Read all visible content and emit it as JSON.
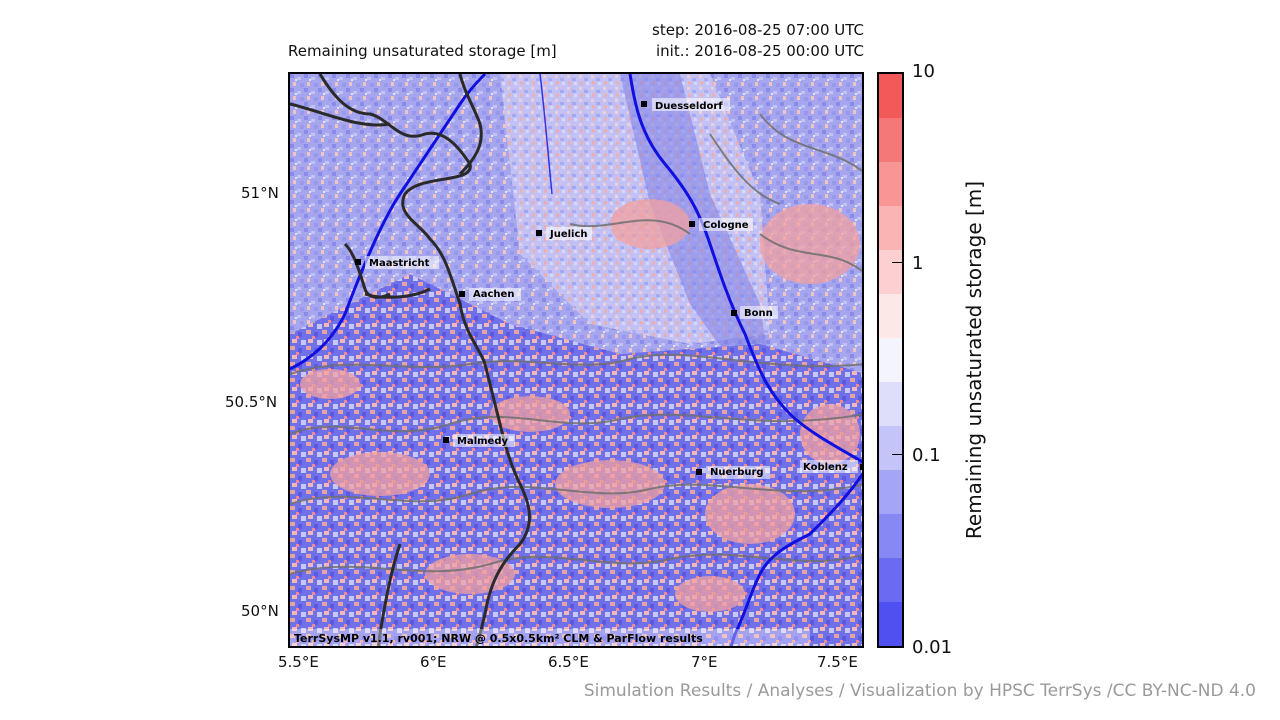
{
  "header": {
    "variable_title": "Remaining unsaturated storage [m]",
    "step_text": "step: 2016-08-25 07:00 UTC",
    "init_text": "init.: 2016-08-25 00:00 UTC"
  },
  "axes": {
    "lat_ticks": [
      "51°N",
      "50.5°N",
      "50°N"
    ],
    "lon_ticks": [
      "5.5°E",
      "6°E",
      "6.5°E",
      "7°E",
      "7.5°E"
    ]
  },
  "map": {
    "cities": [
      {
        "name": "Duesseldorf"
      },
      {
        "name": "Cologne"
      },
      {
        "name": "Juelich"
      },
      {
        "name": "Maastricht"
      },
      {
        "name": "Aachen"
      },
      {
        "name": "Bonn"
      },
      {
        "name": "Malmedy"
      },
      {
        "name": "Nuerburg"
      },
      {
        "name": "Koblenz"
      }
    ],
    "credit": "TerrSysMP v1.1, rv001; NRW @ 0.5x0.5km² CLM & ParFlow results",
    "colors": {
      "river": "#1010e0",
      "border": "#2a2a2a",
      "contour": "#707070"
    }
  },
  "colorbar": {
    "label": "Remaining unsaturated storage [m]",
    "tick_labels": [
      "10",
      "1",
      "0.1",
      "0.01"
    ],
    "scale": "log",
    "range": [
      0.01,
      10
    ],
    "colors": [
      "#5050f0",
      "#6a6af2",
      "#8888f4",
      "#a5a5f6",
      "#c4c4f8",
      "#dedefa",
      "#f4f4fc",
      "#fde8e8",
      "#fcd0d0",
      "#fab4b4",
      "#f89696",
      "#f57878",
      "#f25a5a"
    ]
  },
  "footer": {
    "credit": "Simulation Results / Analyses / Visualization by HPSC TerrSys /CC BY-NC-ND 4.0"
  }
}
